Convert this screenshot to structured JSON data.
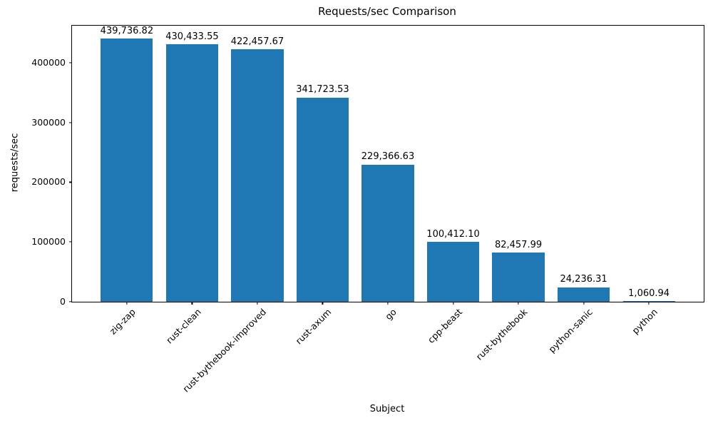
{
  "chart_data": {
    "type": "bar",
    "title": "Requests/sec Comparison",
    "xlabel": "Subject",
    "ylabel": "requests/sec",
    "categories": [
      "zig-zap",
      "rust-clean",
      "rust-bythebook-improved",
      "rust-axum",
      "go",
      "cpp-beast",
      "rust-bythebook",
      "python-sanic",
      "python"
    ],
    "values": [
      439736.82,
      430433.55,
      422457.67,
      341723.53,
      229366.63,
      100412.1,
      82457.99,
      24236.31,
      1060.94
    ],
    "value_labels": [
      "439,736.82",
      "430,433.55",
      "422,457.67",
      "341,723.53",
      "229,366.63",
      "100,412.10",
      "82,457.99",
      "24,236.31",
      "1,060.94"
    ],
    "yticks": [
      0,
      100000,
      200000,
      300000,
      400000
    ],
    "ytick_labels": [
      "0",
      "100000",
      "200000",
      "300000",
      "400000"
    ],
    "ylim": [
      0,
      461723.66
    ],
    "xlim": [
      -0.84,
      8.84
    ],
    "bar_width_units": 0.8,
    "bar_color": "#1f77b4",
    "grid": false,
    "legend": null
  }
}
